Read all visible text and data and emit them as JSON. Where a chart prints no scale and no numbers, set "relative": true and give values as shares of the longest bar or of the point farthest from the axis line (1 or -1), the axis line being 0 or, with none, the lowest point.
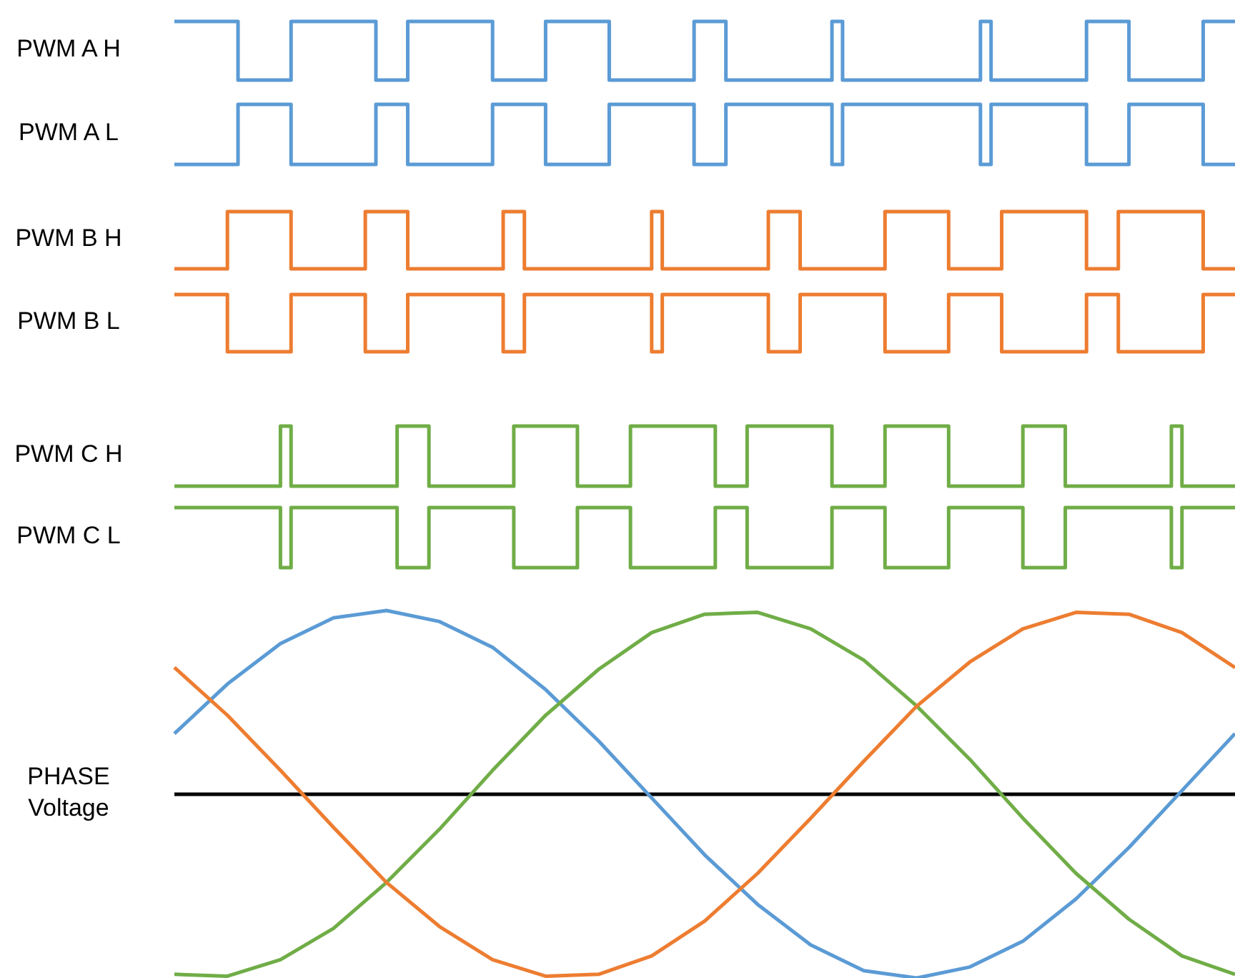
{
  "chart_data": [
    {
      "type": "step",
      "ylabel": "PWM A H",
      "relative": true,
      "categories": [
        null,
        null,
        null,
        null,
        null,
        null,
        null,
        null,
        null,
        null,
        null,
        null,
        null,
        null,
        null,
        null,
        null,
        null,
        null,
        null,
        null,
        null,
        null,
        null,
        null,
        null,
        null,
        null,
        null,
        null,
        null,
        null,
        null,
        null,
        null,
        null,
        null,
        null,
        null,
        null,
        null,
        null,
        null,
        null,
        null,
        null,
        null,
        null,
        null,
        null,
        null,
        null,
        null,
        null,
        null,
        null,
        null,
        null,
        null,
        null,
        null,
        null,
        null,
        null,
        null,
        null,
        null,
        null,
        null,
        null,
        null,
        null,
        null,
        null,
        null,
        null,
        null,
        null,
        null,
        null,
        null,
        null,
        null,
        null,
        null,
        null,
        null,
        null,
        null,
        null,
        null,
        null,
        null,
        null,
        null,
        null,
        null,
        null,
        null,
        null,
        null
      ],
      "series": [
        {
          "color": "#5b9bd5",
          "values": [
            1,
            1,
            1,
            1,
            1,
            1,
            0,
            0,
            0,
            0,
            0,
            1,
            1,
            1,
            1,
            1,
            1,
            1,
            1,
            0,
            0,
            0,
            1,
            1,
            1,
            1,
            1,
            1,
            1,
            1,
            0,
            0,
            0,
            0,
            0,
            1,
            1,
            1,
            1,
            1,
            1,
            0,
            0,
            0,
            0,
            0,
            0,
            0,
            0,
            1,
            1,
            1,
            0,
            0,
            0,
            0,
            0,
            0,
            0,
            0,
            0,
            0,
            1,
            0,
            0,
            0,
            0,
            0,
            0,
            0,
            0,
            0,
            0,
            0,
            0,
            0,
            1,
            0,
            0,
            0,
            0,
            0,
            0,
            0,
            0,
            0,
            1,
            1,
            1,
            1,
            0,
            0,
            0,
            0,
            0,
            0,
            0,
            1,
            1,
            1,
            1
          ]
        }
      ]
    },
    {
      "type": "step",
      "ylabel": "PWM A L",
      "relative": true,
      "categories": [
        null,
        null,
        null,
        null,
        null,
        null,
        null,
        null,
        null,
        null,
        null,
        null,
        null,
        null,
        null,
        null,
        null,
        null,
        null,
        null,
        null,
        null,
        null,
        null,
        null,
        null,
        null,
        null,
        null,
        null,
        null,
        null,
        null,
        null,
        null,
        null,
        null,
        null,
        null,
        null,
        null,
        null,
        null,
        null,
        null,
        null,
        null,
        null,
        null,
        null,
        null,
        null,
        null,
        null,
        null,
        null,
        null,
        null,
        null,
        null,
        null,
        null,
        null,
        null,
        null,
        null,
        null,
        null,
        null,
        null,
        null,
        null,
        null,
        null,
        null,
        null,
        null,
        null,
        null,
        null,
        null,
        null,
        null,
        null,
        null,
        null,
        null,
        null,
        null,
        null,
        null,
        null,
        null,
        null,
        null,
        null,
        null,
        null,
        null,
        null,
        null
      ],
      "series": [
        {
          "color": "#5b9bd5",
          "values": [
            0,
            0,
            0,
            0,
            0,
            0,
            1,
            1,
            1,
            1,
            1,
            0,
            0,
            0,
            0,
            0,
            0,
            0,
            0,
            1,
            1,
            1,
            0,
            0,
            0,
            0,
            0,
            0,
            0,
            0,
            1,
            1,
            1,
            1,
            1,
            0,
            0,
            0,
            0,
            0,
            0,
            1,
            1,
            1,
            1,
            1,
            1,
            1,
            1,
            0,
            0,
            0,
            1,
            1,
            1,
            1,
            1,
            1,
            1,
            1,
            1,
            1,
            0,
            1,
            1,
            1,
            1,
            1,
            1,
            1,
            1,
            1,
            1,
            1,
            1,
            1,
            0,
            1,
            1,
            1,
            1,
            1,
            1,
            1,
            1,
            1,
            0,
            0,
            0,
            0,
            1,
            1,
            1,
            1,
            1,
            1,
            1,
            0,
            0,
            0,
            0
          ]
        }
      ]
    },
    {
      "type": "step",
      "ylabel": "PWM B H",
      "relative": true,
      "categories": [
        null,
        null,
        null,
        null,
        null,
        null,
        null,
        null,
        null,
        null,
        null,
        null,
        null,
        null,
        null,
        null,
        null,
        null,
        null,
        null,
        null,
        null,
        null,
        null,
        null,
        null,
        null,
        null,
        null,
        null,
        null,
        null,
        null,
        null,
        null,
        null,
        null,
        null,
        null,
        null,
        null,
        null,
        null,
        null,
        null,
        null,
        null,
        null,
        null,
        null,
        null,
        null,
        null,
        null,
        null,
        null,
        null,
        null,
        null,
        null,
        null,
        null,
        null,
        null,
        null,
        null,
        null,
        null,
        null,
        null,
        null,
        null,
        null,
        null,
        null,
        null,
        null,
        null,
        null,
        null,
        null,
        null,
        null,
        null,
        null,
        null,
        null,
        null,
        null,
        null,
        null,
        null,
        null,
        null,
        null,
        null,
        null,
        null,
        null,
        null,
        null
      ],
      "series": [
        {
          "color": "#ed7d31",
          "values": [
            0,
            0,
            0,
            0,
            0,
            1,
            1,
            1,
            1,
            1,
            1,
            0,
            0,
            0,
            0,
            0,
            0,
            0,
            1,
            1,
            1,
            1,
            0,
            0,
            0,
            0,
            0,
            0,
            0,
            0,
            0,
            1,
            1,
            0,
            0,
            0,
            0,
            0,
            0,
            0,
            0,
            0,
            0,
            0,
            0,
            1,
            0,
            0,
            0,
            0,
            0,
            0,
            0,
            0,
            0,
            0,
            1,
            1,
            1,
            0,
            0,
            0,
            0,
            0,
            0,
            0,
            0,
            1,
            1,
            1,
            1,
            1,
            1,
            0,
            0,
            0,
            0,
            0,
            1,
            1,
            1,
            1,
            1,
            1,
            1,
            1,
            0,
            0,
            0,
            1,
            1,
            1,
            1,
            1,
            1,
            1,
            1,
            0,
            0,
            0,
            0
          ]
        }
      ]
    },
    {
      "type": "step",
      "ylabel": "PWM B L",
      "relative": true,
      "categories": [
        null,
        null,
        null,
        null,
        null,
        null,
        null,
        null,
        null,
        null,
        null,
        null,
        null,
        null,
        null,
        null,
        null,
        null,
        null,
        null,
        null,
        null,
        null,
        null,
        null,
        null,
        null,
        null,
        null,
        null,
        null,
        null,
        null,
        null,
        null,
        null,
        null,
        null,
        null,
        null,
        null,
        null,
        null,
        null,
        null,
        null,
        null,
        null,
        null,
        null,
        null,
        null,
        null,
        null,
        null,
        null,
        null,
        null,
        null,
        null,
        null,
        null,
        null,
        null,
        null,
        null,
        null,
        null,
        null,
        null,
        null,
        null,
        null,
        null,
        null,
        null,
        null,
        null,
        null,
        null,
        null,
        null,
        null,
        null,
        null,
        null,
        null,
        null,
        null,
        null,
        null,
        null,
        null,
        null,
        null,
        null,
        null,
        null,
        null,
        null,
        null
      ],
      "series": [
        {
          "color": "#ed7d31",
          "values": [
            1,
            1,
            1,
            1,
            1,
            0,
            0,
            0,
            0,
            0,
            0,
            1,
            1,
            1,
            1,
            1,
            1,
            1,
            0,
            0,
            0,
            0,
            1,
            1,
            1,
            1,
            1,
            1,
            1,
            1,
            1,
            0,
            0,
            1,
            1,
            1,
            1,
            1,
            1,
            1,
            1,
            1,
            1,
            1,
            1,
            0,
            1,
            1,
            1,
            1,
            1,
            1,
            1,
            1,
            1,
            1,
            0,
            0,
            0,
            1,
            1,
            1,
            1,
            1,
            1,
            1,
            1,
            0,
            0,
            0,
            0,
            0,
            0,
            1,
            1,
            1,
            1,
            1,
            0,
            0,
            0,
            0,
            0,
            0,
            0,
            0,
            1,
            1,
            1,
            0,
            0,
            0,
            0,
            0,
            0,
            0,
            0,
            1,
            1,
            1,
            1
          ]
        }
      ]
    },
    {
      "type": "step",
      "ylabel": "PWM C H",
      "relative": true,
      "categories": [
        null,
        null,
        null,
        null,
        null,
        null,
        null,
        null,
        null,
        null,
        null,
        null,
        null,
        null,
        null,
        null,
        null,
        null,
        null,
        null,
        null,
        null,
        null,
        null,
        null,
        null,
        null,
        null,
        null,
        null,
        null,
        null,
        null,
        null,
        null,
        null,
        null,
        null,
        null,
        null,
        null,
        null,
        null,
        null,
        null,
        null,
        null,
        null,
        null,
        null,
        null,
        null,
        null,
        null,
        null,
        null,
        null,
        null,
        null,
        null,
        null,
        null,
        null,
        null,
        null,
        null,
        null,
        null,
        null,
        null,
        null,
        null,
        null,
        null,
        null,
        null,
        null,
        null,
        null,
        null,
        null,
        null,
        null,
        null,
        null,
        null,
        null,
        null,
        null,
        null,
        null,
        null,
        null,
        null,
        null,
        null,
        null,
        null,
        null,
        null,
        null
      ],
      "series": [
        {
          "color": "#70ad47",
          "values": [
            0,
            0,
            0,
            0,
            0,
            0,
            0,
            0,
            0,
            0,
            1,
            0,
            0,
            0,
            0,
            0,
            0,
            0,
            0,
            0,
            0,
            1,
            1,
            1,
            0,
            0,
            0,
            0,
            0,
            0,
            0,
            0,
            1,
            1,
            1,
            1,
            1,
            1,
            0,
            0,
            0,
            0,
            0,
            1,
            1,
            1,
            1,
            1,
            1,
            1,
            1,
            0,
            0,
            0,
            1,
            1,
            1,
            1,
            1,
            1,
            1,
            1,
            0,
            0,
            0,
            0,
            0,
            1,
            1,
            1,
            1,
            1,
            1,
            0,
            0,
            0,
            0,
            0,
            0,
            0,
            1,
            1,
            1,
            1,
            0,
            0,
            0,
            0,
            0,
            0,
            0,
            0,
            0,
            0,
            1,
            0,
            0,
            0,
            0,
            0,
            0
          ]
        }
      ]
    },
    {
      "type": "step",
      "ylabel": "PWM C L",
      "relative": true,
      "categories": [
        null,
        null,
        null,
        null,
        null,
        null,
        null,
        null,
        null,
        null,
        null,
        null,
        null,
        null,
        null,
        null,
        null,
        null,
        null,
        null,
        null,
        null,
        null,
        null,
        null,
        null,
        null,
        null,
        null,
        null,
        null,
        null,
        null,
        null,
        null,
        null,
        null,
        null,
        null,
        null,
        null,
        null,
        null,
        null,
        null,
        null,
        null,
        null,
        null,
        null,
        null,
        null,
        null,
        null,
        null,
        null,
        null,
        null,
        null,
        null,
        null,
        null,
        null,
        null,
        null,
        null,
        null,
        null,
        null,
        null,
        null,
        null,
        null,
        null,
        null,
        null,
        null,
        null,
        null,
        null,
        null,
        null,
        null,
        null,
        null,
        null,
        null,
        null,
        null,
        null,
        null,
        null,
        null,
        null,
        null,
        null,
        null,
        null,
        null,
        null,
        null
      ],
      "series": [
        {
          "color": "#70ad47",
          "values": [
            1,
            1,
            1,
            1,
            1,
            1,
            1,
            1,
            1,
            1,
            0,
            1,
            1,
            1,
            1,
            1,
            1,
            1,
            1,
            1,
            1,
            0,
            0,
            0,
            1,
            1,
            1,
            1,
            1,
            1,
            1,
            1,
            0,
            0,
            0,
            0,
            0,
            0,
            1,
            1,
            1,
            1,
            1,
            0,
            0,
            0,
            0,
            0,
            0,
            0,
            0,
            1,
            1,
            1,
            0,
            0,
            0,
            0,
            0,
            0,
            0,
            0,
            1,
            1,
            1,
            1,
            1,
            0,
            0,
            0,
            0,
            0,
            0,
            1,
            1,
            1,
            1,
            1,
            1,
            1,
            0,
            0,
            0,
            0,
            1,
            1,
            1,
            1,
            1,
            1,
            1,
            1,
            1,
            1,
            0,
            1,
            1,
            1,
            1,
            1,
            1
          ]
        }
      ]
    },
    {
      "type": "line",
      "ylabel": "PHASE Voltage",
      "relative": true,
      "categories": [
        null,
        null,
        null,
        null,
        null,
        null,
        null,
        null,
        null,
        null,
        null,
        null,
        null,
        null,
        null,
        null,
        null,
        null,
        null,
        null,
        null
      ],
      "series": [
        {
          "color": "#5b9bd5",
          "values": [
            0.33,
            0.6,
            0.82,
            0.96,
            1.0,
            0.94,
            0.8,
            0.57,
            0.29,
            -0.02,
            -0.33,
            -0.6,
            -0.82,
            -0.96,
            -1.0,
            -0.94,
            -0.8,
            -0.57,
            -0.29,
            0.02,
            0.33
          ]
        },
        {
          "color": "#70ad47",
          "values": [
            -0.98,
            -0.99,
            -0.9,
            -0.73,
            -0.48,
            -0.19,
            0.13,
            0.43,
            0.68,
            0.88,
            0.98,
            0.99,
            0.9,
            0.73,
            0.48,
            0.19,
            -0.13,
            -0.43,
            -0.68,
            -0.88,
            -0.98
          ]
        },
        {
          "color": "#ed7d31",
          "values": [
            0.69,
            0.43,
            0.13,
            -0.18,
            -0.48,
            -0.72,
            -0.9,
            -0.99,
            -0.98,
            -0.88,
            -0.69,
            -0.43,
            -0.13,
            0.18,
            0.48,
            0.72,
            0.9,
            0.99,
            0.98,
            0.88,
            0.69
          ]
        }
      ]
    }
  ]
}
